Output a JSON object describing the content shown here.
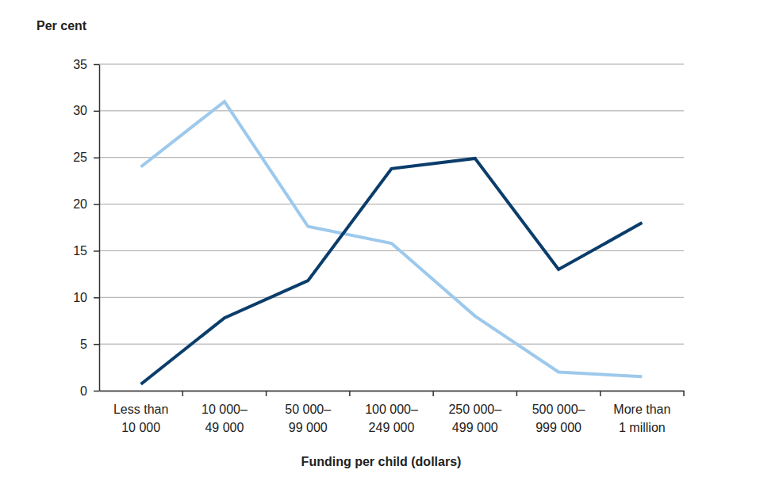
{
  "chart_data": {
    "type": "line",
    "y_label": "Per cent",
    "x_label": "Funding per child (dollars)",
    "categories": [
      "Less than\n10 000",
      "10 000–\n49 000",
      "50 000–\n99 000",
      "100 000–\n249 000",
      "250 000–\n499 000",
      "500 000–\n999 000",
      "More than\n1 million"
    ],
    "series": [
      {
        "color": "#9dc9ec",
        "values": [
          24,
          31,
          17.6,
          15.8,
          8,
          2,
          1.5
        ]
      },
      {
        "color": "#0b3d6b",
        "values": [
          0.7,
          7.8,
          11.8,
          23.8,
          24.9,
          13,
          18
        ]
      }
    ],
    "ylim": [
      0,
      35
    ],
    "yticks": [
      0,
      5,
      10,
      15,
      20,
      25,
      30,
      35
    ],
    "grid": true
  }
}
